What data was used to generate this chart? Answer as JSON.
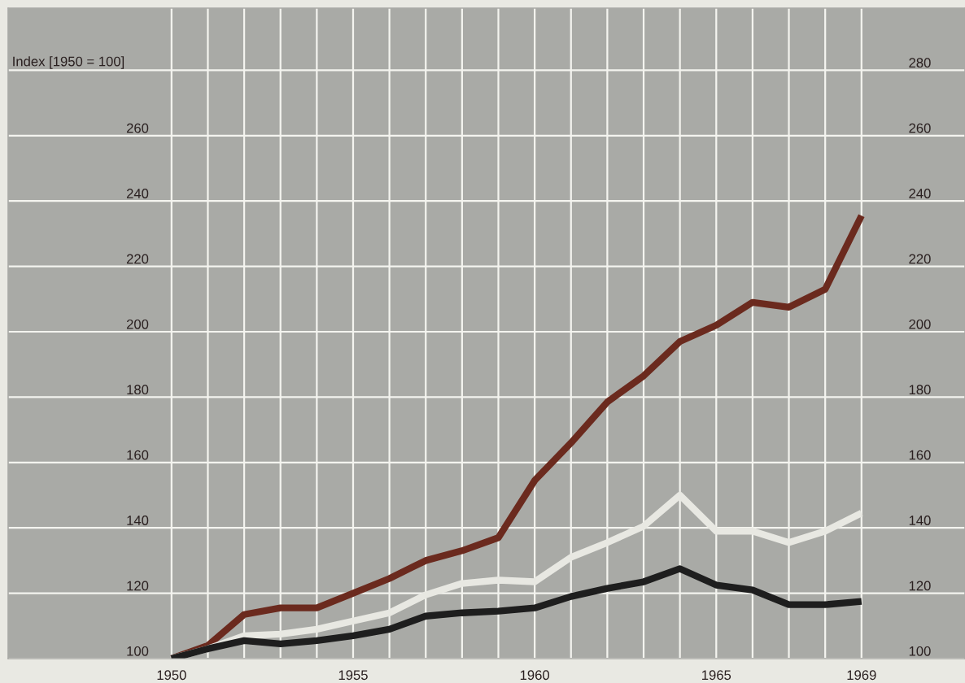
{
  "chart_data": {
    "type": "line",
    "ylabel": "Index [1950 = 100]",
    "x": [
      1950,
      1951,
      1952,
      1953,
      1954,
      1955,
      1956,
      1957,
      1958,
      1959,
      1960,
      1961,
      1962,
      1963,
      1964,
      1965,
      1966,
      1967,
      1968,
      1969
    ],
    "series": [
      {
        "color": "#6b2a1e",
        "values": [
          100,
          104,
          113.5,
          115.5,
          115.5,
          120,
          124.5,
          130,
          133,
          137,
          154.5,
          166,
          178.5,
          186.5,
          197,
          202,
          209,
          207.5,
          213,
          235.5
        ]
      },
      {
        "color": "#e8e8e2",
        "values": [
          100,
          103,
          107,
          107.5,
          109,
          111.5,
          114,
          119.5,
          123,
          124,
          123.5,
          131,
          135.5,
          140.5,
          150,
          139,
          139,
          135.5,
          139,
          144.5
        ]
      },
      {
        "color": "#1e1e1e",
        "values": [
          100,
          103,
          105.5,
          104.5,
          105.5,
          107,
          109,
          113,
          114,
          114.5,
          115.5,
          119,
          121.5,
          123.5,
          127.5,
          122.5,
          121,
          116.5,
          116.5,
          117.5
        ]
      }
    ],
    "xlim": [
      1945.5,
      1971.85
    ],
    "xticks": [
      {
        "value": 1950,
        "label": "1950"
      },
      {
        "value": 1951,
        "label": null
      },
      {
        "value": 1952,
        "label": null
      },
      {
        "value": 1953,
        "label": null
      },
      {
        "value": 1954,
        "label": null
      },
      {
        "value": 1955,
        "label": "1955"
      },
      {
        "value": 1956,
        "label": null
      },
      {
        "value": 1957,
        "label": null
      },
      {
        "value": 1958,
        "label": null
      },
      {
        "value": 1959,
        "label": null
      },
      {
        "value": 1960,
        "label": "1960"
      },
      {
        "value": 1961,
        "label": null
      },
      {
        "value": 1962,
        "label": null
      },
      {
        "value": 1963,
        "label": null
      },
      {
        "value": 1964,
        "label": null
      },
      {
        "value": 1965,
        "label": "1965"
      },
      {
        "value": 1966,
        "label": null
      },
      {
        "value": 1967,
        "label": null
      },
      {
        "value": 1968,
        "label": null
      },
      {
        "value": 1969,
        "label": "1969"
      }
    ],
    "ylim": [
      100,
      299
    ],
    "yticks": [
      100,
      120,
      140,
      160,
      180,
      200,
      220,
      240,
      260,
      {
        "value": 280,
        "label": null
      }
    ],
    "y2lim": [
      100,
      299
    ],
    "y2ticks": [
      100,
      120,
      140,
      160,
      180,
      200,
      220,
      240,
      260,
      280
    ],
    "grid": true,
    "line_style": "solid",
    "marker": "none"
  }
}
